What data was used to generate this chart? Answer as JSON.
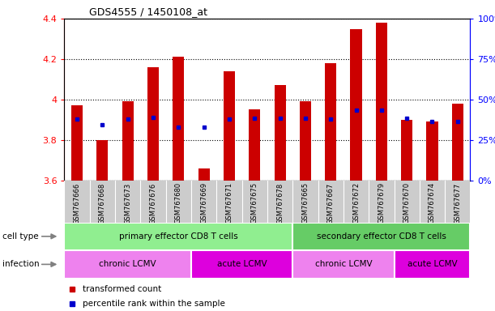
{
  "title": "GDS4555 / 1450108_at",
  "samples": [
    "GSM767666",
    "GSM767668",
    "GSM767673",
    "GSM767676",
    "GSM767680",
    "GSM767669",
    "GSM767671",
    "GSM767675",
    "GSM767678",
    "GSM767665",
    "GSM767667",
    "GSM767672",
    "GSM767679",
    "GSM767670",
    "GSM767674",
    "GSM767677"
  ],
  "bar_values": [
    3.97,
    3.8,
    3.99,
    4.16,
    4.21,
    3.66,
    4.14,
    3.95,
    4.07,
    3.99,
    4.18,
    4.35,
    4.38,
    3.9,
    3.89,
    3.98
  ],
  "blue_values": [
    3.905,
    3.875,
    3.905,
    3.91,
    3.862,
    3.862,
    3.905,
    3.908,
    3.908,
    3.908,
    3.905,
    3.948,
    3.948,
    3.908,
    3.893,
    3.893
  ],
  "ylim_left": [
    3.6,
    4.4
  ],
  "ylim_right": [
    0,
    100
  ],
  "yticks_left": [
    3.6,
    3.8,
    4.0,
    4.2,
    4.4
  ],
  "ytick_labels_left": [
    "3.6",
    "3.8",
    "4",
    "4.2",
    "4.4"
  ],
  "yticks_right": [
    0,
    25,
    50,
    75,
    100
  ],
  "ytick_labels_right": [
    "0%",
    "25%",
    "50%",
    "75%",
    "100%"
  ],
  "bar_color": "#cc0000",
  "blue_color": "#0000cc",
  "bar_bottom": 3.6,
  "cell_type_groups": [
    {
      "label": "primary effector CD8 T cells",
      "start": 0,
      "end": 9,
      "color": "#90ee90"
    },
    {
      "label": "secondary effector CD8 T cells",
      "start": 9,
      "end": 16,
      "color": "#66cc66"
    }
  ],
  "infection_groups": [
    {
      "label": "chronic LCMV",
      "start": 0,
      "end": 5,
      "color": "#ee82ee"
    },
    {
      "label": "acute LCMV",
      "start": 5,
      "end": 9,
      "color": "#dd00dd"
    },
    {
      "label": "chronic LCMV",
      "start": 9,
      "end": 13,
      "color": "#ee82ee"
    },
    {
      "label": "acute LCMV",
      "start": 13,
      "end": 16,
      "color": "#dd00dd"
    }
  ],
  "legend_items": [
    {
      "label": "transformed count",
      "color": "#cc0000"
    },
    {
      "label": "percentile rank within the sample",
      "color": "#0000cc"
    }
  ],
  "cell_type_label": "cell type",
  "infection_label": "infection",
  "xlabel_bg_color": "#cccccc",
  "n_samples": 16
}
